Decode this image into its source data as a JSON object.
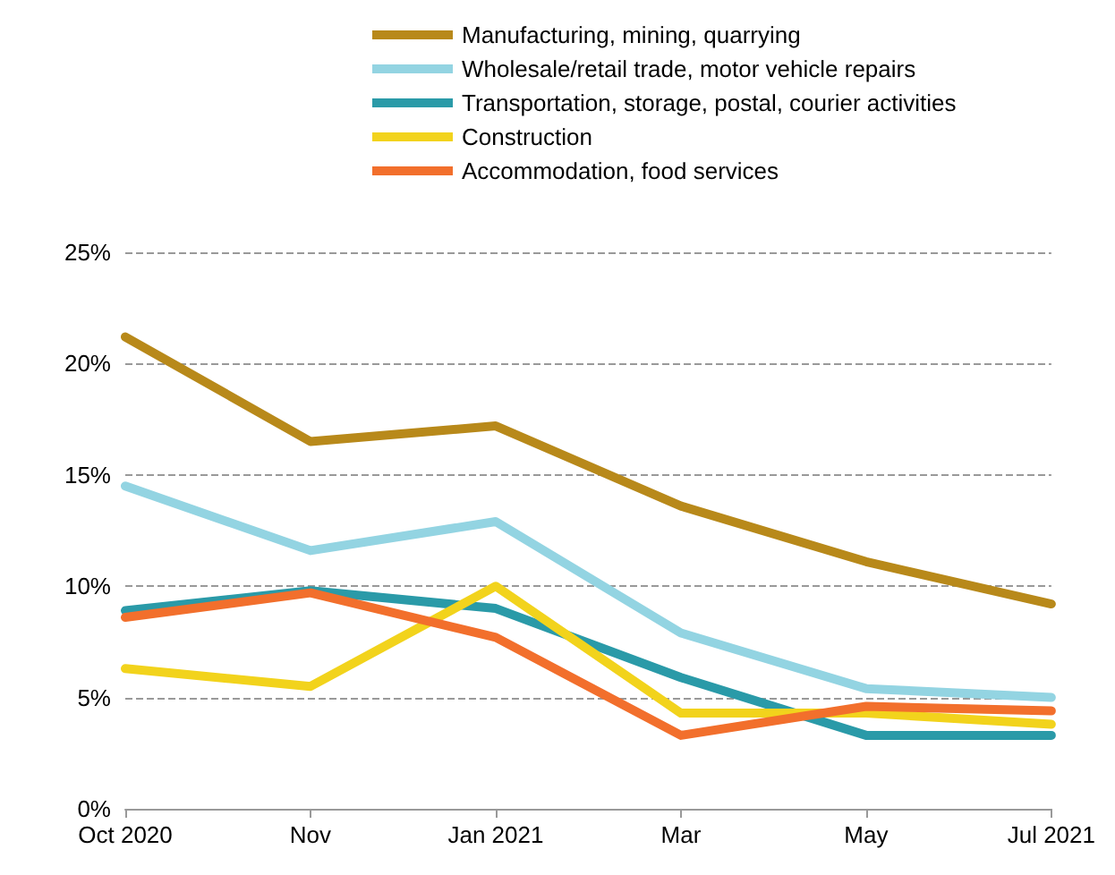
{
  "chart_data": {
    "type": "line",
    "categories": [
      "Oct 2020",
      "Nov",
      "Jan 2021",
      "Mar",
      "May",
      "Jul 2021"
    ],
    "series": [
      {
        "name": "Manufacturing, mining, quarrying",
        "color": "#b8891a",
        "values": [
          21.2,
          16.5,
          17.2,
          13.6,
          11.1,
          9.2
        ]
      },
      {
        "name": "Wholesale/retail trade, motor vehicle repairs",
        "color": "#93d4e2",
        "values": [
          14.5,
          11.6,
          12.9,
          7.9,
          5.4,
          5.0
        ]
      },
      {
        "name": "Transportation, storage, postal, courier activities",
        "color": "#2a9aa8",
        "values": [
          8.9,
          9.8,
          9.0,
          5.9,
          3.3,
          3.3
        ]
      },
      {
        "name": "Construction",
        "color": "#f2d31c",
        "values": [
          6.3,
          5.5,
          10.0,
          4.3,
          4.3,
          3.8
        ]
      },
      {
        "name": "Accommodation, food services",
        "color": "#f26f2c",
        "values": [
          8.6,
          9.7,
          7.7,
          3.3,
          4.6,
          4.4
        ]
      }
    ],
    "ylim": [
      0,
      25
    ],
    "yticks": [
      {
        "value": 0,
        "label": "0%"
      },
      {
        "value": 5,
        "label": "5%"
      },
      {
        "value": 10,
        "label": "10%"
      },
      {
        "value": 15,
        "label": "15%"
      },
      {
        "value": 20,
        "label": "20%"
      },
      {
        "value": 25,
        "label": "25%"
      }
    ],
    "grid": "y",
    "legend": "top",
    "marker": "none",
    "line_style": "solid"
  }
}
